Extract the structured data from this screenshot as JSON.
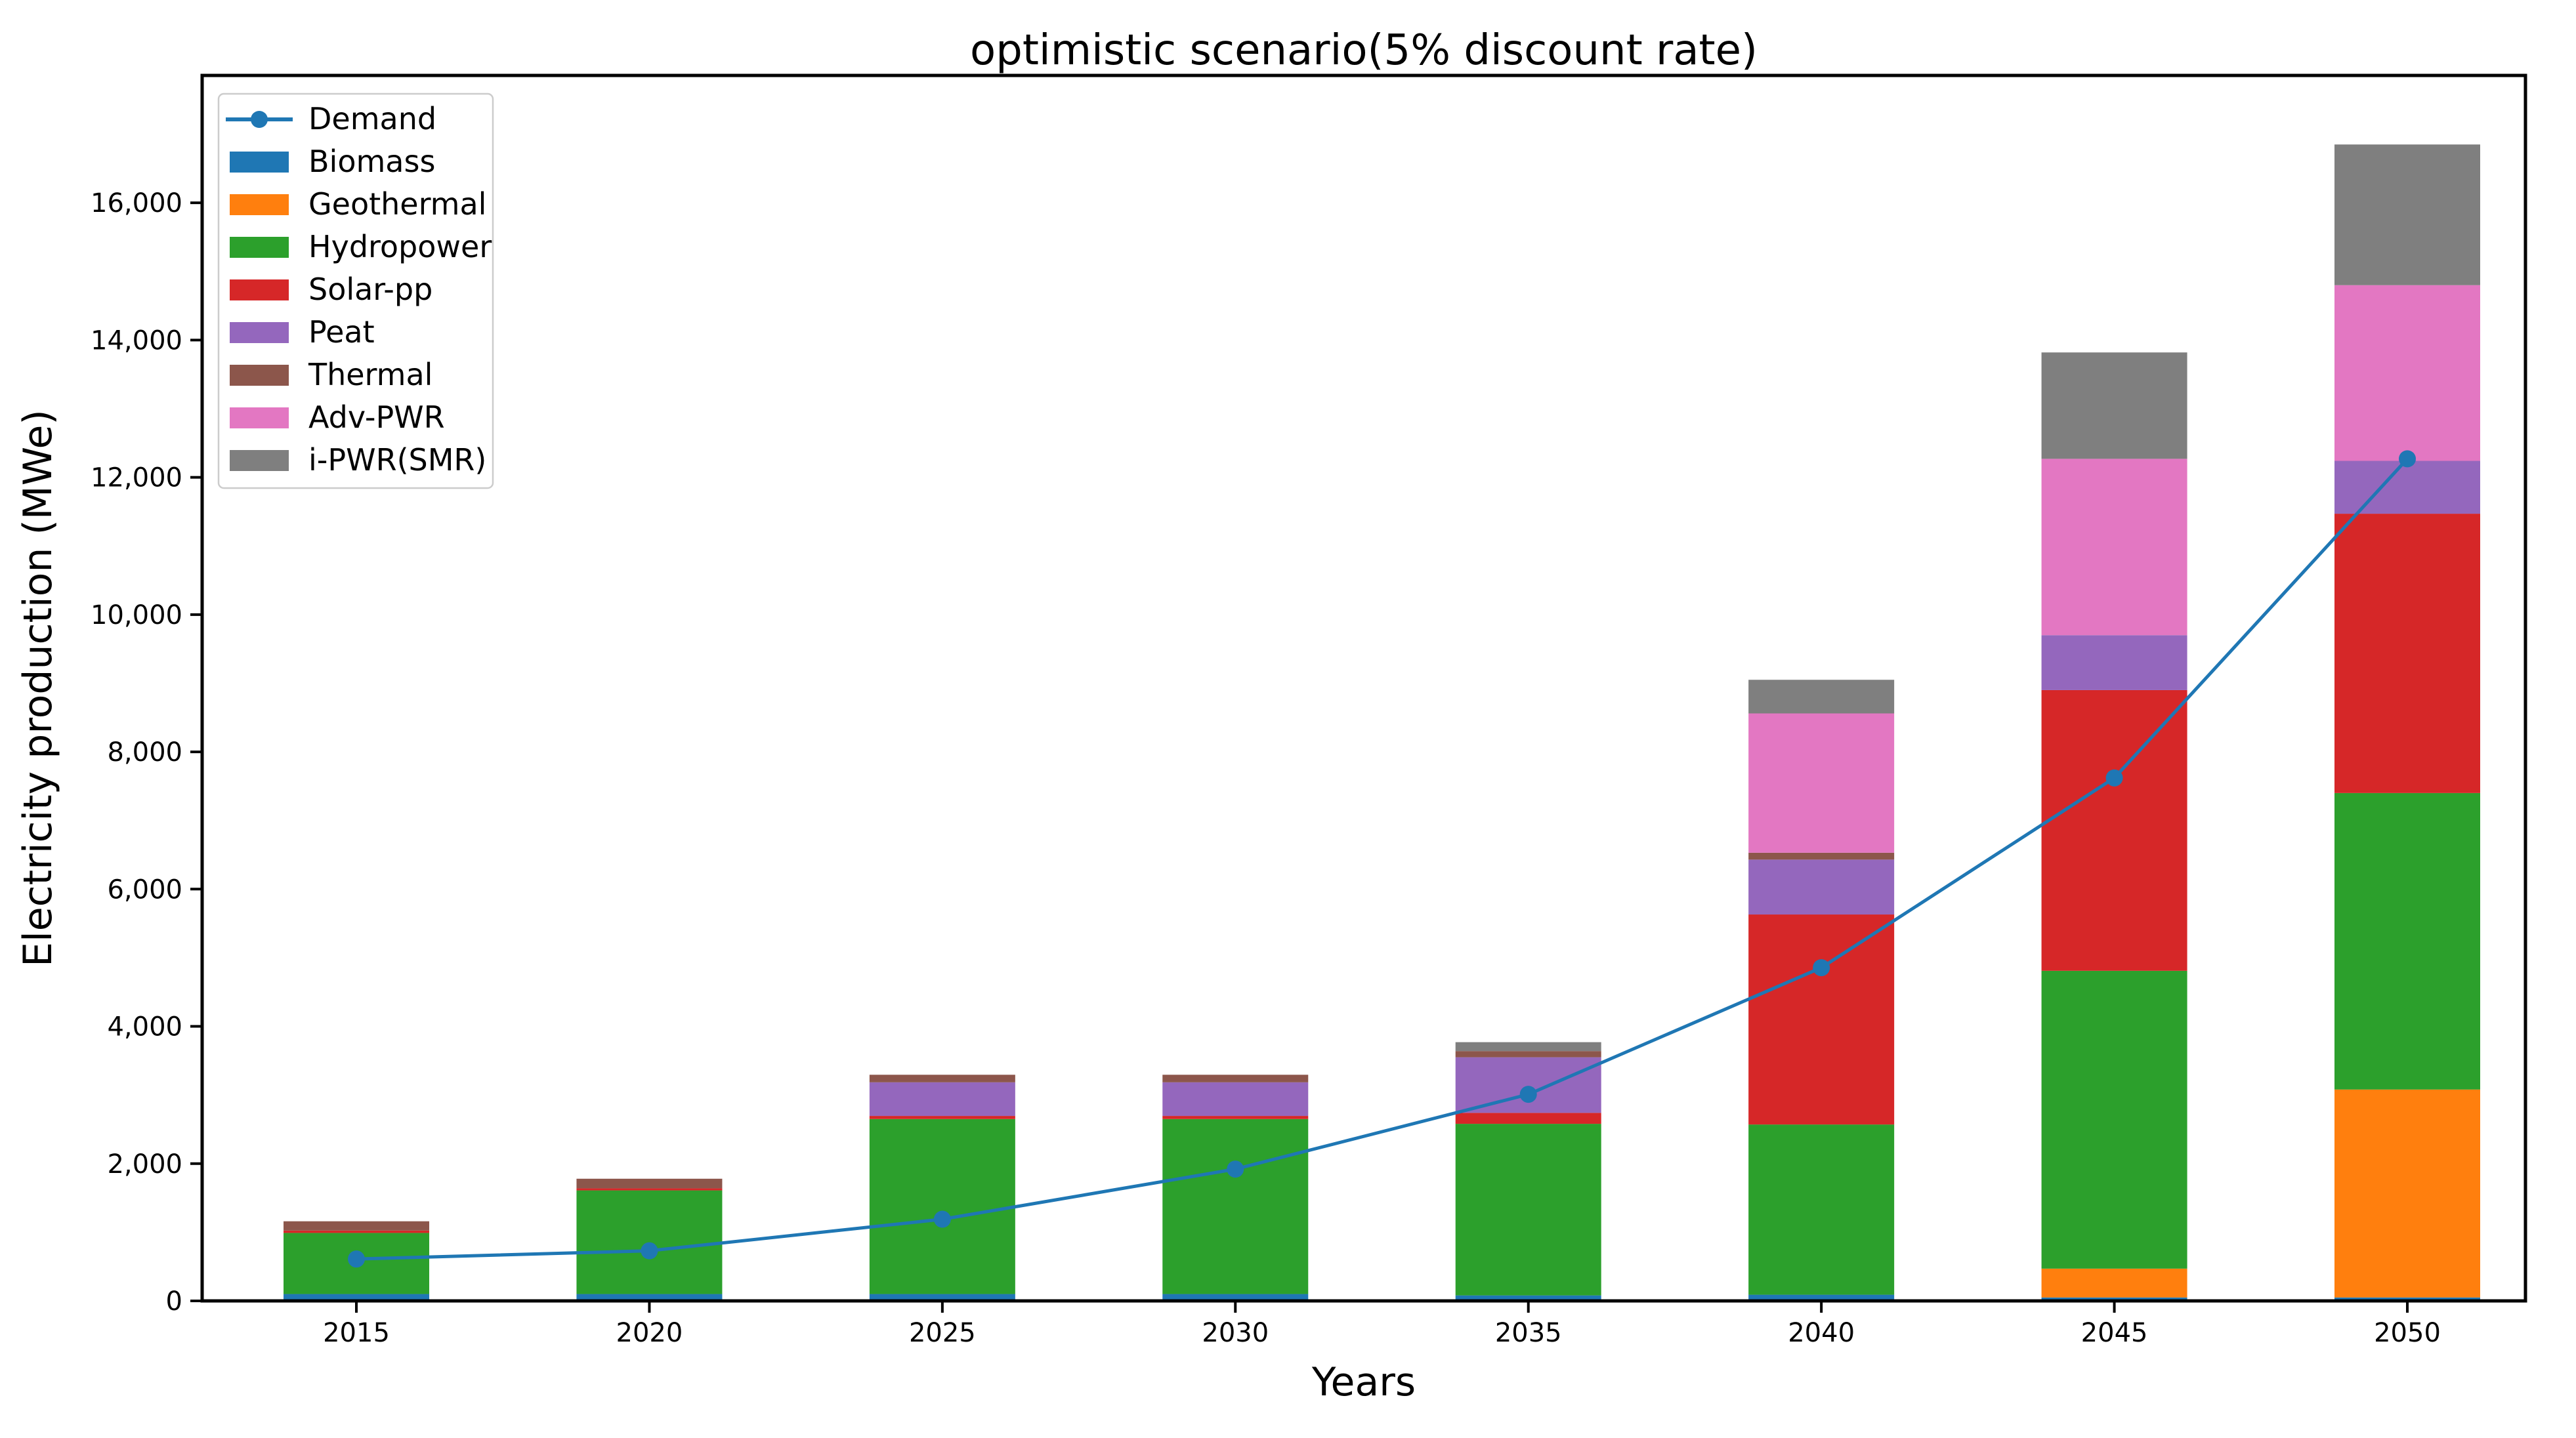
{
  "chart_data": {
    "type": "bar",
    "stacked": true,
    "overlay": "line",
    "title": "optimistic scenario(5% discount rate)",
    "xlabel": "Years",
    "ylabel": "Electricity production (MWe)",
    "categories": [
      "2015",
      "2020",
      "2025",
      "2030",
      "2035",
      "2040",
      "2045",
      "2050"
    ],
    "series": [
      {
        "name": "Biomass",
        "color": "#1f77b4",
        "values": [
          100,
          100,
          100,
          100,
          80,
          90,
          50,
          50
        ]
      },
      {
        "name": "Geothermal",
        "color": "#ff7f0e",
        "values": [
          0,
          0,
          0,
          0,
          0,
          0,
          420,
          3030
        ]
      },
      {
        "name": "Hydropower",
        "color": "#2ca02c",
        "values": [
          890,
          1510,
          2550,
          2550,
          2500,
          2480,
          4340,
          4320
        ]
      },
      {
        "name": "Solar-pp",
        "color": "#d62728",
        "values": [
          35,
          30,
          45,
          45,
          160,
          3060,
          4090,
          4070
        ]
      },
      {
        "name": "Peat",
        "color": "#9467bd",
        "values": [
          0,
          0,
          490,
          490,
          810,
          800,
          800,
          770
        ]
      },
      {
        "name": "Thermal",
        "color": "#8c564b",
        "values": [
          135,
          140,
          110,
          110,
          90,
          100,
          0,
          0
        ]
      },
      {
        "name": "Adv-PWR",
        "color": "#e377c2",
        "values": [
          0,
          0,
          0,
          0,
          0,
          2030,
          2570,
          2560
        ]
      },
      {
        "name": "i-PWR(SMR)",
        "color": "#7f7f7f",
        "values": [
          0,
          0,
          0,
          0,
          130,
          490,
          1550,
          2050
        ]
      }
    ],
    "line_series": {
      "name": "Demand",
      "color": "#1f77b4",
      "values": [
        610,
        730,
        1190,
        1920,
        3010,
        4855,
        7620,
        12270
      ]
    },
    "legend_order": [
      "Demand",
      "Biomass",
      "Geothermal",
      "Hydropower",
      "Solar-pp",
      "Peat",
      "Thermal",
      "Adv-PWR",
      "i-PWR(SMR)"
    ],
    "legend_position": "upper left",
    "grid": false,
    "ylim": [
      0,
      17856
    ],
    "yticks": [
      0,
      2000,
      4000,
      6000,
      8000,
      10000,
      12000,
      14000,
      16000
    ],
    "ytick_labels": [
      "0",
      "2,000",
      "4,000",
      "6,000",
      "8,000",
      "10,000",
      "12,000",
      "14,000",
      "16,000"
    ],
    "axis_color": "#000000",
    "background_color": "#ffffff"
  }
}
